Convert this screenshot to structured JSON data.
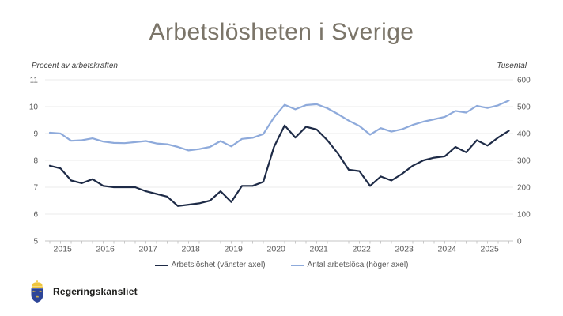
{
  "title": "Arbetslösheten i Sverige",
  "footer": {
    "org": "Regeringskansliet"
  },
  "brand_colors": {
    "shield_blue": "#2d4598",
    "crown_gold": "#f0c63e"
  },
  "chart_data": {
    "type": "line",
    "title": "Arbetslösheten i Sverige",
    "grid": "horizontal",
    "legend_position": "bottom",
    "x_sampling": "quarterly",
    "x_start": "2015 Q1",
    "x_years": [
      "2015",
      "2016",
      "2017",
      "2018",
      "2019",
      "2020",
      "2021",
      "2022",
      "2023",
      "2024",
      "2025"
    ],
    "left_axis": {
      "label": "Procent av arbetskraften",
      "range": [
        5,
        11
      ],
      "ticks": [
        11,
        10,
        9,
        8,
        7,
        6,
        5
      ]
    },
    "right_axis": {
      "label": "Tusental",
      "range": [
        0,
        600
      ],
      "ticks": [
        600,
        500,
        400,
        300,
        200,
        100,
        0
      ]
    },
    "series": [
      {
        "name": "Arbetslöshet (vänster axel)",
        "axis": "left",
        "color": "#1e2b47",
        "values": [
          7.8,
          7.7,
          7.25,
          7.15,
          7.3,
          7.05,
          7.0,
          7.0,
          7.0,
          6.85,
          6.75,
          6.65,
          6.3,
          6.35,
          6.4,
          6.5,
          6.85,
          6.45,
          7.05,
          7.05,
          7.2,
          8.5,
          9.3,
          8.85,
          9.25,
          9.15,
          8.75,
          8.25,
          7.65,
          7.6,
          7.05,
          7.4,
          7.25,
          7.5,
          7.8,
          8.0,
          8.1,
          8.15,
          8.5,
          8.3,
          8.75,
          8.55,
          8.85,
          9.1
        ]
      },
      {
        "name": "Antal arbetslösa (höger axel)",
        "axis": "right",
        "color": "#8eaadb",
        "values": [
          403,
          400,
          373,
          375,
          382,
          370,
          365,
          364,
          368,
          372,
          363,
          360,
          350,
          337,
          342,
          350,
          372,
          352,
          380,
          384,
          398,
          460,
          507,
          490,
          506,
          509,
          494,
          472,
          448,
          428,
          396,
          420,
          407,
          416,
          432,
          444,
          453,
          462,
          484,
          478,
          503,
          495,
          505,
          523
        ]
      }
    ]
  }
}
